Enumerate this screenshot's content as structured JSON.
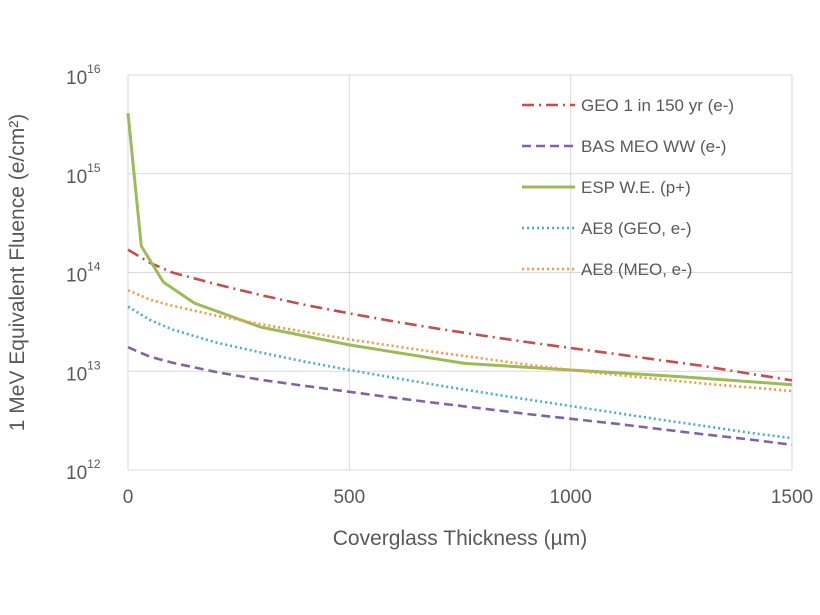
{
  "chart_data": {
    "type": "line",
    "title": "",
    "xlabel": "Coverglass Thickness (µm)",
    "ylabel": "1 MeV Equivalent Fluence (e/cm²)",
    "x_scale": "linear",
    "y_scale": "log",
    "xlim": [
      0,
      1500
    ],
    "ylim": [
      1000000000000.0,
      1e+16
    ],
    "x_ticks": [
      {
        "value": 0,
        "label": "0"
      },
      {
        "value": 500,
        "label": "500"
      },
      {
        "value": 1000,
        "label": "1000"
      },
      {
        "value": 1500,
        "label": "1500"
      }
    ],
    "y_ticks": [
      {
        "value": 1000000000000.0,
        "base": "10",
        "exp": "12"
      },
      {
        "value": 10000000000000.0,
        "base": "10",
        "exp": "13"
      },
      {
        "value": 100000000000000.0,
        "base": "10",
        "exp": "14"
      },
      {
        "value": 1000000000000000.0,
        "base": "10",
        "exp": "15"
      },
      {
        "value": 1e+16,
        "base": "10",
        "exp": "16"
      }
    ],
    "grid": true,
    "legend_position": "top-right",
    "series": [
      {
        "name": "GEO 1 in 150 yr (e-)",
        "color": "#C0504D",
        "dash": "dash-dot",
        "x": [
          0,
          50,
          100,
          200,
          300,
          400,
          500,
          600,
          700,
          800,
          900,
          1000,
          1100,
          1200,
          1300,
          1400,
          1500
        ],
        "y": [
          170000000000000.0,
          125000000000000.0,
          100000000000000.0,
          76000000000000.0,
          59000000000000.0,
          47000000000000.0,
          38500000000000.0,
          32000000000000.0,
          27000000000000.0,
          23000000000000.0,
          19800000000000.0,
          17200000000000.0,
          15000000000000.0,
          13000000000000.0,
          11300000000000.0,
          9500000000000.0,
          8100000000000.0
        ]
      },
      {
        "name": "BAS MEO WW (e-)",
        "color": "#8064A2",
        "dash": "dash",
        "x": [
          0,
          50,
          100,
          200,
          300,
          400,
          500,
          600,
          700,
          800,
          900,
          1000,
          1100,
          1200,
          1300,
          1400,
          1500
        ],
        "y": [
          17500000000000.0,
          14000000000000.0,
          12200000000000.0,
          9800000000000.0,
          8200000000000.0,
          7100000000000.0,
          6200000000000.0,
          5400000000000.0,
          4750000000000.0,
          4200000000000.0,
          3700000000000.0,
          3300000000000.0,
          2950000000000.0,
          2600000000000.0,
          2300000000000.0,
          2050000000000.0,
          1800000000000.0
        ]
      },
      {
        "name": "ESP W.E. (p+)",
        "color": "#9BBB59",
        "dash": "solid",
        "x": [
          0,
          30,
          80,
          150,
          300,
          500,
          760,
          1000,
          1250,
          1500
        ],
        "y": [
          4100000000000000.0,
          185000000000000.0,
          80000000000000.0,
          49000000000000.0,
          28000000000000.0,
          18500000000000.0,
          12000000000000.0,
          10300000000000.0,
          8800000000000.0,
          7300000000000.0
        ]
      },
      {
        "name": "AE8 (GEO, e-)",
        "color": "#4BACC6",
        "dash": "dot",
        "x": [
          0,
          50,
          100,
          200,
          300,
          400,
          500,
          600,
          700,
          800,
          900,
          1000,
          1100,
          1200,
          1300,
          1400,
          1500
        ],
        "y": [
          45000000000000.0,
          33000000000000.0,
          26500000000000.0,
          19500000000000.0,
          15500000000000.0,
          12500000000000.0,
          10300000000000.0,
          8600000000000.0,
          7200000000000.0,
          6100000000000.0,
          5200000000000.0,
          4450000000000.0,
          3800000000000.0,
          3250000000000.0,
          2800000000000.0,
          2400000000000.0,
          2100000000000.0
        ]
      },
      {
        "name": "AE8 (MEO, e-)",
        "color": "#F79646",
        "dash": "dot",
        "x": [
          0,
          50,
          100,
          200,
          300,
          400,
          500,
          600,
          700,
          800,
          900,
          1000,
          1100,
          1200,
          1300,
          1400,
          1500
        ],
        "y": [
          66000000000000.0,
          53000000000000.0,
          46000000000000.0,
          36500000000000.0,
          30000000000000.0,
          25000000000000.0,
          21000000000000.0,
          18000000000000.0,
          15500000000000.0,
          13500000000000.0,
          11700000000000.0,
          10300000000000.0,
          9200000000000.0,
          8300000000000.0,
          7500000000000.0,
          6900000000000.0,
          6300000000000.0
        ]
      }
    ]
  }
}
